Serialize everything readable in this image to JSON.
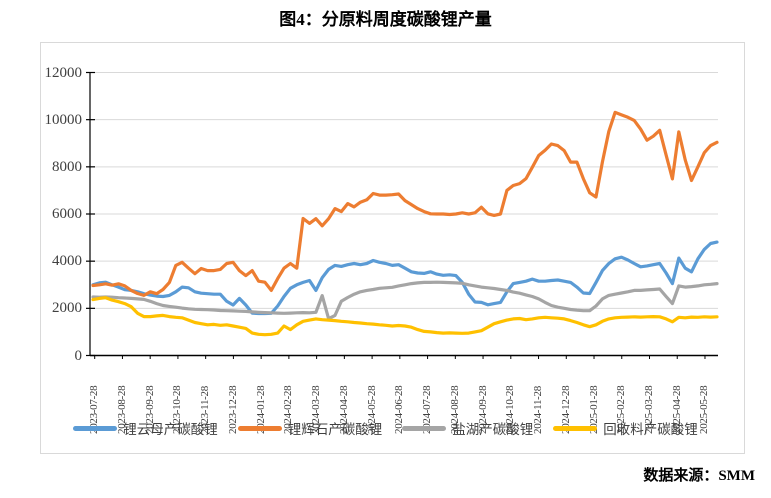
{
  "page": {
    "title": "图4：分原料周度碳酸锂产量",
    "source_note": "数据来源：SMM"
  },
  "chart_data": {
    "type": "line",
    "title": "图4：分原料周度碳酸锂产量",
    "ylabel": "",
    "xlabel": "",
    "ylim": [
      0,
      12000
    ],
    "y_ticks": [
      0,
      2000,
      4000,
      6000,
      8000,
      10000,
      12000
    ],
    "grid": "horizontal",
    "gridline_color": "#d9d9d9",
    "axis_color": "#000000",
    "legend_position": "bottom",
    "x_unit": "weekly",
    "x_tick_labels": [
      "2023-07-28",
      "2023-08-28",
      "2023-09-28",
      "2023-10-28",
      "2023-11-28",
      "2023-12-28",
      "2024-01-28",
      "2024-02-28",
      "2024-03-28",
      "2024-04-28",
      "2024-05-28",
      "2024-06-28",
      "2024-07-28",
      "2024-08-28",
      "2024-09-28",
      "2024-10-28",
      "2024-11-28",
      "2024-12-28",
      "2025-01-28",
      "2025-02-28",
      "2025-03-28",
      "2025-04-28",
      "2025-05-28"
    ],
    "series": [
      {
        "name": "锂云母产碳酸锂",
        "color": "#5B9BD5",
        "values": [
          3000,
          3080,
          3110,
          3000,
          2900,
          2790,
          2760,
          2700,
          2620,
          2560,
          2520,
          2500,
          2550,
          2700,
          2900,
          2870,
          2700,
          2640,
          2620,
          2600,
          2600,
          2300,
          2140,
          2420,
          2140,
          1800,
          1780,
          1780,
          1790,
          2100,
          2500,
          2850,
          3000,
          3100,
          3180,
          2760,
          3300,
          3650,
          3820,
          3780,
          3850,
          3900,
          3850,
          3900,
          4030,
          3950,
          3900,
          3820,
          3850,
          3700,
          3550,
          3500,
          3480,
          3550,
          3450,
          3400,
          3420,
          3390,
          3100,
          2600,
          2270,
          2250,
          2150,
          2200,
          2250,
          2700,
          3050,
          3100,
          3150,
          3240,
          3150,
          3150,
          3180,
          3200,
          3150,
          3100,
          2900,
          2650,
          2630,
          3100,
          3600,
          3900,
          4100,
          4170,
          4050,
          3900,
          3760,
          3800,
          3850,
          3900,
          3500,
          3050,
          4130,
          3700,
          3550,
          4100,
          4500,
          4750,
          4810
        ]
      },
      {
        "name": "锂辉石产碳酸锂",
        "color": "#ED7D31",
        "values": [
          2970,
          3000,
          3040,
          2980,
          3040,
          2950,
          2760,
          2630,
          2550,
          2700,
          2620,
          2800,
          3100,
          3820,
          3950,
          3700,
          3470,
          3690,
          3600,
          3600,
          3650,
          3900,
          3950,
          3600,
          3390,
          3600,
          3150,
          3110,
          2760,
          3260,
          3700,
          3900,
          3700,
          5810,
          5600,
          5800,
          5500,
          5800,
          6230,
          6100,
          6440,
          6300,
          6500,
          6600,
          6870,
          6800,
          6800,
          6820,
          6850,
          6570,
          6400,
          6230,
          6100,
          6010,
          6000,
          6000,
          5980,
          6000,
          6050,
          6000,
          6050,
          6290,
          6010,
          5940,
          6000,
          7000,
          7210,
          7290,
          7500,
          7980,
          8480,
          8700,
          8970,
          8900,
          8690,
          8200,
          8200,
          7500,
          6900,
          6720,
          8200,
          9500,
          10310,
          10200,
          10100,
          9970,
          9600,
          9130,
          9300,
          9550,
          8500,
          7490,
          9480,
          8300,
          7420,
          8000,
          8600,
          8900,
          9040
        ]
      },
      {
        "name": "盐湖产碳酸锂",
        "color": "#A5A5A5",
        "values": [
          2480,
          2470,
          2480,
          2470,
          2450,
          2440,
          2420,
          2400,
          2380,
          2300,
          2200,
          2120,
          2080,
          2050,
          2010,
          1980,
          1960,
          1950,
          1940,
          1930,
          1910,
          1900,
          1890,
          1880,
          1870,
          1850,
          1830,
          1820,
          1810,
          1800,
          1790,
          1800,
          1810,
          1820,
          1810,
          1830,
          2540,
          1560,
          1700,
          2300,
          2460,
          2600,
          2700,
          2760,
          2800,
          2850,
          2870,
          2890,
          2950,
          3000,
          3050,
          3080,
          3100,
          3100,
          3110,
          3100,
          3090,
          3080,
          3060,
          3000,
          2950,
          2900,
          2870,
          2840,
          2800,
          2760,
          2690,
          2640,
          2570,
          2500,
          2400,
          2250,
          2120,
          2050,
          2000,
          1950,
          1920,
          1900,
          1900,
          2100,
          2400,
          2550,
          2600,
          2650,
          2700,
          2760,
          2760,
          2780,
          2800,
          2820,
          2500,
          2200,
          2950,
          2900,
          2920,
          2950,
          3000,
          3020,
          3050
        ]
      },
      {
        "name": "回收料产碳酸锂",
        "color": "#FFC000",
        "values": [
          2370,
          2420,
          2450,
          2350,
          2280,
          2200,
          2070,
          1790,
          1650,
          1650,
          1680,
          1700,
          1650,
          1620,
          1600,
          1500,
          1400,
          1350,
          1300,
          1320,
          1280,
          1300,
          1250,
          1200,
          1150,
          950,
          900,
          880,
          900,
          950,
          1250,
          1100,
          1300,
          1450,
          1500,
          1550,
          1520,
          1500,
          1480,
          1450,
          1430,
          1400,
          1380,
          1350,
          1330,
          1300,
          1280,
          1250,
          1270,
          1250,
          1200,
          1100,
          1020,
          1000,
          970,
          950,
          960,
          950,
          940,
          950,
          1000,
          1050,
          1200,
          1350,
          1430,
          1500,
          1550,
          1570,
          1520,
          1550,
          1600,
          1620,
          1600,
          1580,
          1550,
          1480,
          1400,
          1300,
          1220,
          1300,
          1450,
          1550,
          1600,
          1620,
          1630,
          1640,
          1630,
          1640,
          1650,
          1640,
          1550,
          1430,
          1620,
          1600,
          1630,
          1620,
          1640,
          1630,
          1640
        ]
      }
    ]
  }
}
